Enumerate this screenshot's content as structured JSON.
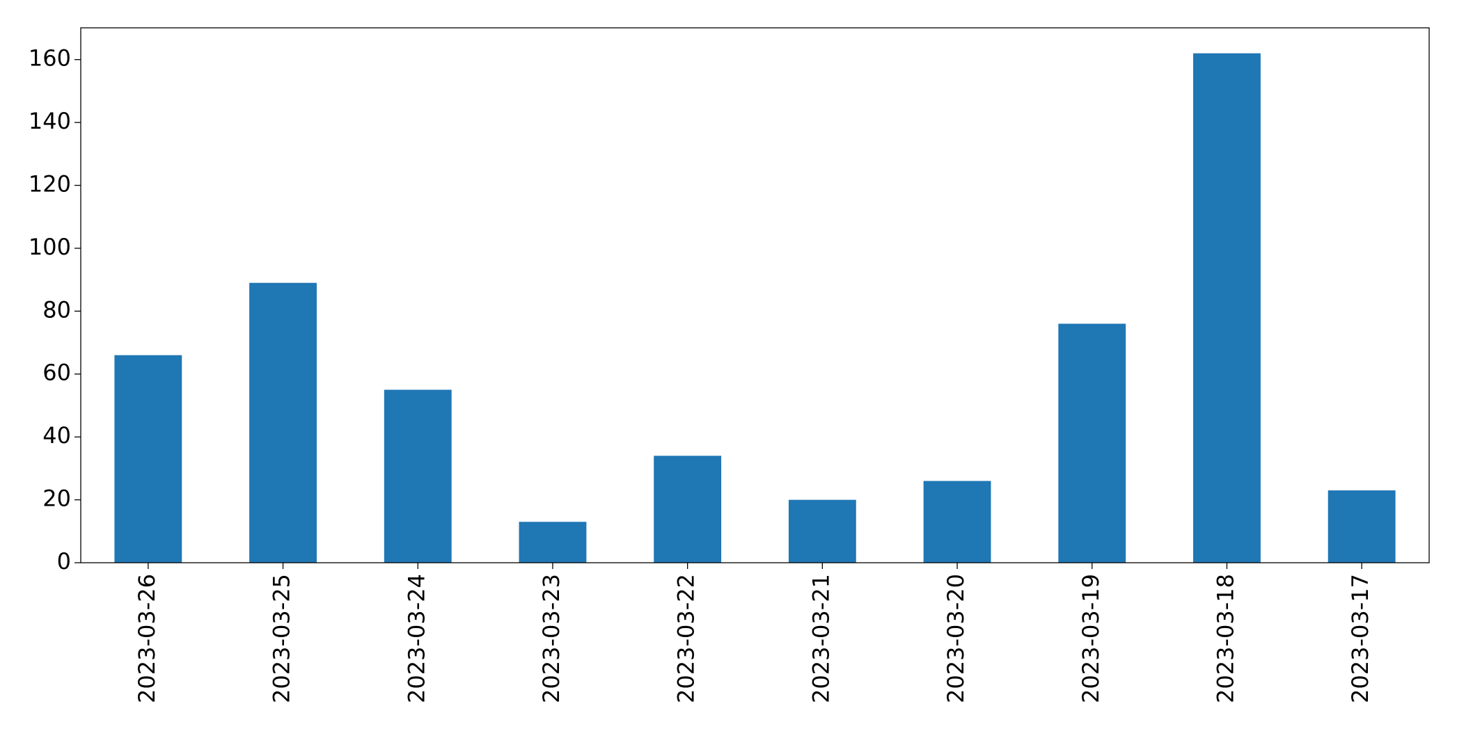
{
  "chart_data": {
    "type": "bar",
    "categories": [
      "2023-03-26",
      "2023-03-25",
      "2023-03-24",
      "2023-03-23",
      "2023-03-22",
      "2023-03-21",
      "2023-03-20",
      "2023-03-19",
      "2023-03-18",
      "2023-03-17"
    ],
    "values": [
      66,
      89,
      55,
      13,
      34,
      20,
      26,
      76,
      162,
      23
    ],
    "color": "#1f77b4",
    "ylim": [
      0,
      170.1
    ],
    "yticks": [
      0,
      20,
      40,
      60,
      80,
      100,
      120,
      140,
      160
    ],
    "grid": false
  }
}
